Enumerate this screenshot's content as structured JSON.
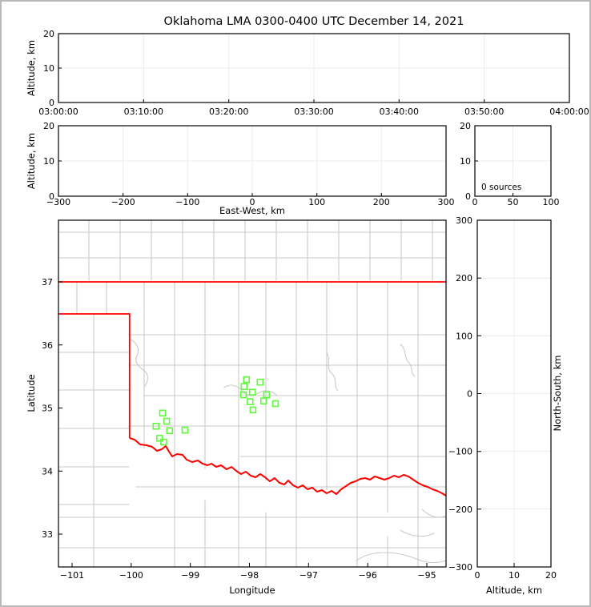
{
  "title": "Oklahoma LMA 0300-0400 UTC December 14, 2021",
  "colors": {
    "state_border": "#ff0000",
    "county_lines": "#cacaca",
    "station_marker": "#5dfb3a",
    "gridline": "#ececec",
    "figure_frame": "#b9b9b9"
  },
  "panels": {
    "time_height": {
      "ylabel": "Altitude, km",
      "yticks": [
        "20",
        "10",
        "0"
      ],
      "xticks": [
        "03:00:00",
        "03:10:00",
        "03:20:00",
        "03:30:00",
        "03:40:00",
        "03:50:00",
        "04:00:00"
      ]
    },
    "ew_height": {
      "ylabel": "Altitude, km",
      "xlabel": "East-West, km",
      "yticks": [
        "20",
        "10",
        "0"
      ],
      "xticks": [
        "−300",
        "−200",
        "−100",
        "0",
        "100",
        "200",
        "300"
      ]
    },
    "histogram": {
      "annotation": "0 sources",
      "yticks": [
        "20",
        "10",
        "0"
      ],
      "xticks": [
        "0",
        "50",
        "100"
      ]
    },
    "map": {
      "ylabel": "Latitude",
      "xlabel": "Longitude",
      "yticks": [
        "37",
        "36",
        "35",
        "34",
        "33"
      ],
      "xticks": [
        "−101",
        "−100",
        "−99",
        "−98",
        "−97",
        "−96",
        "−95"
      ]
    },
    "ns_height": {
      "ylabel": "North-South, km",
      "xlabel": "Altitude, km",
      "yticks": [
        "300",
        "200",
        "100",
        "0",
        "−100",
        "−200",
        "−300"
      ],
      "xticks": [
        "0",
        "10",
        "20"
      ]
    }
  },
  "chart_data": {
    "type": "scatter",
    "title": "Oklahoma LMA 0300-0400 UTC December 14, 2021",
    "panels": [
      {
        "id": "time-height",
        "ylabel": "Altitude, km",
        "y_range": [
          0,
          20
        ],
        "x_ticks": [
          "03:00:00",
          "03:10:00",
          "03:20:00",
          "03:30:00",
          "03:40:00",
          "03:50:00",
          "04:00:00"
        ],
        "series": []
      },
      {
        "id": "east-west-height",
        "xlabel": "East-West, km",
        "ylabel": "Altitude, km",
        "x_range": [
          -300,
          300
        ],
        "y_range": [
          0,
          20
        ],
        "series": []
      },
      {
        "id": "altitude-histogram",
        "annotation": "0 sources",
        "x_range": [
          0,
          100
        ],
        "y_range": [
          0,
          20
        ],
        "series": []
      },
      {
        "id": "plan-view-map",
        "xlabel": "Longitude",
        "ylabel": "Latitude",
        "x_range": [
          -101.23,
          -94.67
        ],
        "y_range": [
          32.48,
          37.98
        ],
        "state_border_latitudes": [
          37.0,
          36.5
        ],
        "state_border_longitude": -100.0,
        "series": [
          {
            "name": "lma-stations",
            "marker": "open-square",
            "color": "#5dfb3a",
            "points": [
              {
                "lon": -98.05,
                "lat": 35.45
              },
              {
                "lon": -97.82,
                "lat": 35.41
              },
              {
                "lon": -98.09,
                "lat": 35.34
              },
              {
                "lon": -97.95,
                "lat": 35.25
              },
              {
                "lon": -98.1,
                "lat": 35.21
              },
              {
                "lon": -97.71,
                "lat": 35.21
              },
              {
                "lon": -97.76,
                "lat": 35.11
              },
              {
                "lon": -97.99,
                "lat": 35.1
              },
              {
                "lon": -97.56,
                "lat": 35.07
              },
              {
                "lon": -97.94,
                "lat": 34.97
              },
              {
                "lon": -99.47,
                "lat": 34.92
              },
              {
                "lon": -99.4,
                "lat": 34.79
              },
              {
                "lon": -99.58,
                "lat": 34.71
              },
              {
                "lon": -99.35,
                "lat": 34.64
              },
              {
                "lon": -99.09,
                "lat": 34.65
              },
              {
                "lon": -99.52,
                "lat": 34.52
              },
              {
                "lon": -99.45,
                "lat": 34.46
              }
            ]
          }
        ]
      },
      {
        "id": "north-south-height",
        "xlabel": "Altitude, km",
        "ylabel": "North-South, km",
        "x_range": [
          0,
          20
        ],
        "y_range": [
          -300,
          300
        ],
        "series": []
      }
    ]
  }
}
